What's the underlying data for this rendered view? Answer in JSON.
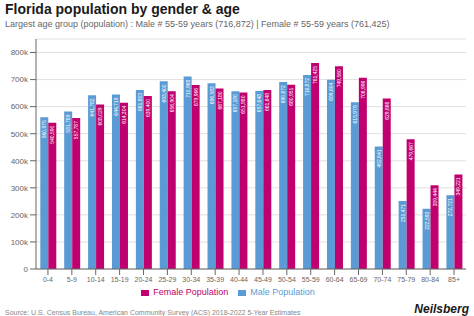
{
  "chart_data": {
    "type": "bar",
    "title": "Florida population by gender & age",
    "subtitle": "Largest age group (population) : Male # 55-59 years (716,872) | Female # 55-59 years (761,425)",
    "annotations": [
      "Source: U.S. Census Bureau, American Community Survey (ACS) 2018-2022 5-Year Estimates",
      "Neilsberg"
    ],
    "categories": [
      "0-4",
      "5-9",
      "10-14",
      "15-19",
      "20-24",
      "25-29",
      "30-34",
      "35-39",
      "40-44",
      "45-49",
      "50-54",
      "55-59",
      "60-64",
      "65-69",
      "70-74",
      "75-79",
      "80-84",
      "85+"
    ],
    "series": [
      {
        "name": "Male Population",
        "color": "#5b9bd5",
        "values": [
          560975,
          581789,
          641782,
          644719,
          661803,
          693400,
          710968,
          686583,
          657180,
          657648,
          690672,
          716872,
          699604,
          615979,
          452641,
          251471,
          222593,
          272721
        ],
        "value_labels": [
          "560,975",
          "581,789",
          "641,782",
          "644,719",
          "661,803",
          "693,400",
          "710,968",
          "686,583",
          "657,180",
          "657,648",
          "690,672",
          "716,872",
          "699,604",
          "615,979",
          "452,641",
          "251,471",
          "222,593",
          "272,721"
        ]
      },
      {
        "name": "Female Population",
        "color": "#c0006e",
        "values": [
          540590,
          557787,
          608029,
          614304,
          639400,
          656904,
          679966,
          667180,
          651980,
          661648,
          680951,
          761425,
          749560,
          706996,
          629666,
          479667,
          309444,
          349221
        ],
        "value_labels": [
          "540,590",
          "557,787",
          "608,029",
          "614,304",
          "639,400",
          "656,904",
          "679,966",
          "667,180",
          "651,980",
          "661,648",
          "680,951",
          "761,425",
          "749,560",
          "706,996",
          "629,666",
          "479,667",
          "309,444",
          "349,221"
        ]
      }
    ],
    "ylim": [
      0,
      850000
    ],
    "yticks": [
      0,
      {
        "value": 100000,
        "label": "100k"
      },
      {
        "value": 200000,
        "label": "200k"
      },
      {
        "value": 300000,
        "label": "300k"
      },
      {
        "value": 400000,
        "label": "400k"
      },
      {
        "value": 500000,
        "label": "500k"
      },
      {
        "value": 600000,
        "label": "600k"
      },
      {
        "value": 700000,
        "label": "700k"
      },
      {
        "value": 800000,
        "label": "800k"
      }
    ],
    "grid": true,
    "legend": "bottom",
    "data_labels": true
  }
}
